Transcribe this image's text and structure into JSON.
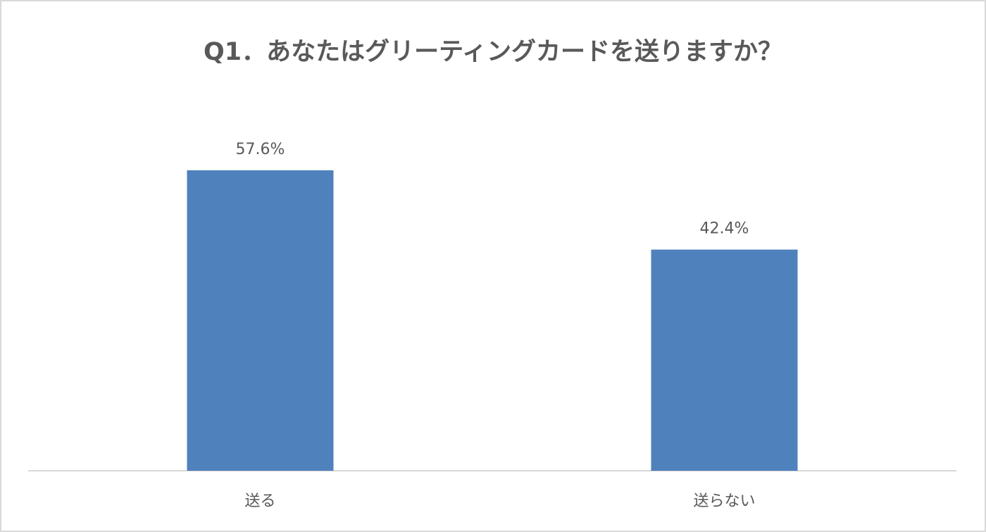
{
  "chart_data": {
    "type": "bar",
    "title": "Q1．あなたはグリーティングカードを送りますか？",
    "categories": [
      "送る",
      "送らない"
    ],
    "values": [
      57.6,
      42.4
    ],
    "value_labels": [
      "57.6%",
      "42.4%"
    ],
    "color": "#4f81bd",
    "grid": false
  }
}
